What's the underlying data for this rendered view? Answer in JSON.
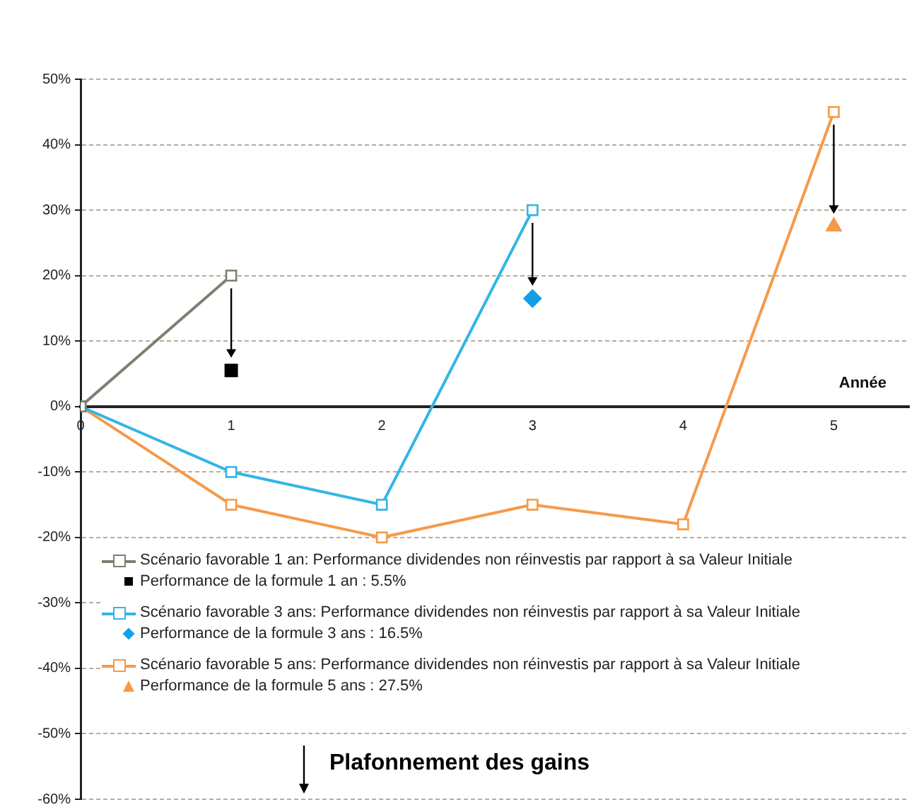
{
  "chart_data": {
    "type": "line",
    "xlabel": "Année",
    "xlim": [
      0,
      5.5
    ],
    "xticks": [
      0,
      1,
      2,
      3,
      4,
      5
    ],
    "ylim": [
      -60,
      50
    ],
    "yticks": [
      {
        "value": -60,
        "label": "-60%"
      },
      {
        "value": -50,
        "label": "-50%"
      },
      {
        "value": -40,
        "label": "-40%"
      },
      {
        "value": -30,
        "label": "-30%"
      },
      {
        "value": -20,
        "label": "-20%"
      },
      {
        "value": -10,
        "label": "-10%"
      },
      {
        "value": 0,
        "label": "0%"
      },
      {
        "value": 10,
        "label": "10%"
      },
      {
        "value": 20,
        "label": "20%"
      },
      {
        "value": 30,
        "label": "30%"
      },
      {
        "value": 40,
        "label": "40%"
      },
      {
        "value": 50,
        "label": "50%"
      }
    ],
    "grid": "y",
    "legend": "bottom",
    "marker": "square",
    "line_style": "solid",
    "series": [
      {
        "name": "Scénario favorable 1 an: Performance dividendes non réinvestis par rapport à sa Valeur Initiale",
        "color": "#7f7f6f",
        "x": [
          0,
          1
        ],
        "values": [
          0,
          20
        ]
      },
      {
        "type": "scatter",
        "marker": "square",
        "name": "Performance de la formule 1 an : 5.5%",
        "color": "#000000",
        "x": [
          1
        ],
        "values": [
          5.5
        ]
      },
      {
        "name": "Scénario favorable 3 ans: Performance dividendes non réinvestis par rapport à sa Valeur Initiale",
        "color": "#33b5e5",
        "x": [
          0,
          1,
          2,
          3
        ],
        "values": [
          0,
          -10,
          -15,
          30
        ]
      },
      {
        "type": "scatter",
        "marker": "diamond",
        "name": "Performance de la formule 3 ans : 16.5%",
        "color": "#0fa0e8",
        "x": [
          3
        ],
        "values": [
          16.5
        ]
      },
      {
        "name": "Scénario favorable 5 ans: Performance dividendes non réinvestis par rapport à sa Valeur Initiale",
        "color": "#f59a4a",
        "x": [
          0,
          1,
          2,
          3,
          4,
          5
        ],
        "values": [
          0,
          -15,
          -20,
          -15,
          -18,
          45
        ]
      },
      {
        "type": "scatter",
        "marker": "triangle",
        "name": "Performance de la formule 5 ans : 27.5%",
        "color": "#f59a4a",
        "x": [
          5
        ],
        "values": [
          27.5
        ]
      }
    ],
    "annotations": [
      "Plafonnement des gains"
    ]
  }
}
